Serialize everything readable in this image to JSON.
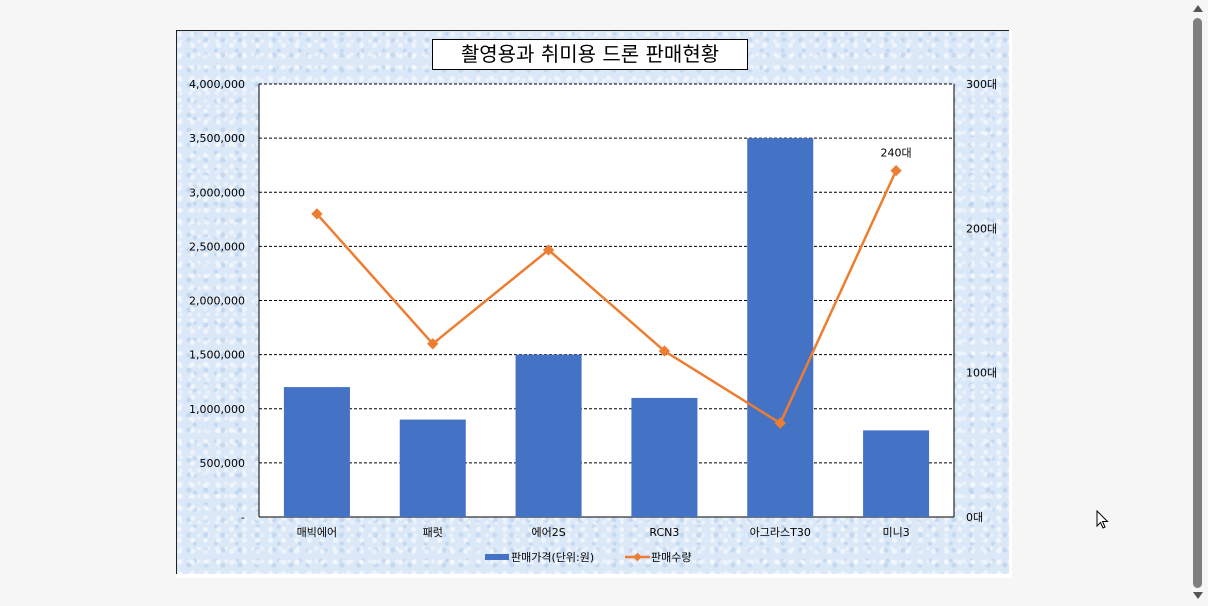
{
  "chart_data": {
    "type": "bar",
    "title": "촬영용과 취미용 드론 판매현황",
    "categories": [
      "매빅에어",
      "패럿",
      "에어2S",
      "RCN3",
      "아그라스T30",
      "미니3"
    ],
    "series": [
      {
        "name": "판매가격(단위:원)",
        "type": "bar",
        "axis": "left",
        "color": "#4472c4",
        "values": [
          1200000,
          900000,
          1500000,
          1100000,
          3500000,
          800000
        ]
      },
      {
        "name": "판매수량",
        "type": "line",
        "axis": "right",
        "color": "#ed7d31",
        "values": [
          210,
          120,
          185,
          115,
          65,
          240
        ]
      }
    ],
    "y_left": {
      "min": 0,
      "max": 4000000,
      "tick_labels": [
        "-",
        "500,000",
        "1,000,000",
        "1,500,000",
        "2,000,000",
        "2,500,000",
        "3,000,000",
        "3,500,000",
        "4,000,000"
      ]
    },
    "y_right": {
      "min": 0,
      "max": 300,
      "tick_labels": [
        "0대",
        "100대",
        "200대",
        "300대"
      ]
    },
    "annotations": [
      {
        "series": 1,
        "index": 5,
        "text": "240대"
      }
    ],
    "grid": true,
    "legend_position": "bottom"
  }
}
